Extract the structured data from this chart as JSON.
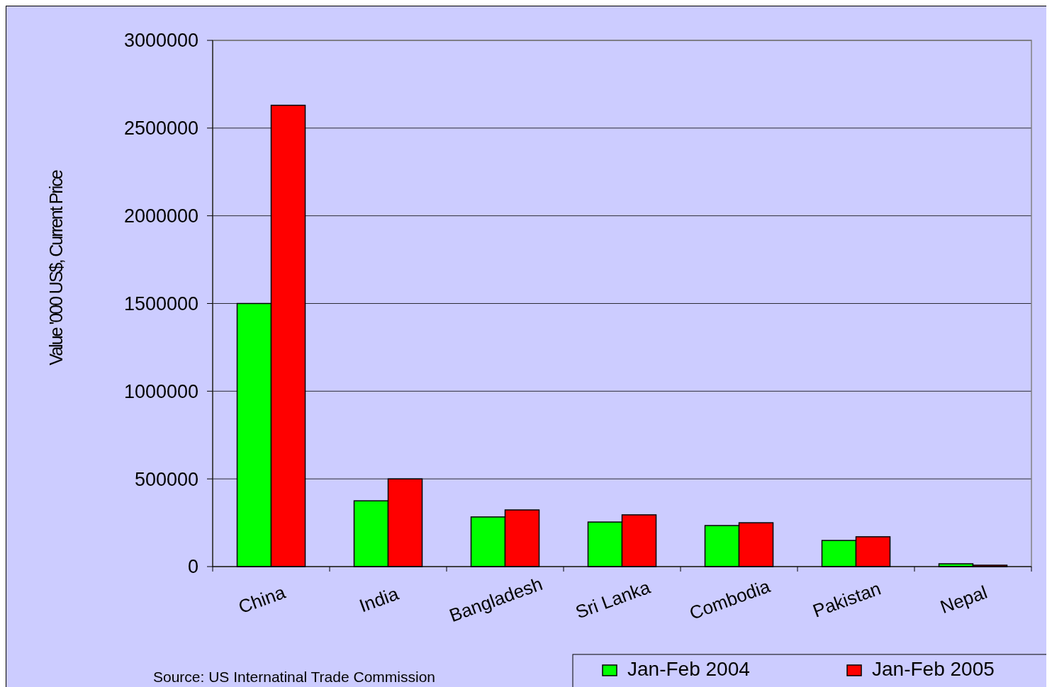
{
  "chart_data": {
    "type": "bar",
    "ylabel": "Value '000 US$, Current Price",
    "categories": [
      "China",
      "India",
      "Bangladesh",
      "Sri Lanka",
      "Combodia",
      "Pakistan",
      "Nepal"
    ],
    "series": [
      {
        "name": "Jan-Feb 2004",
        "color": "#00ff00",
        "values": [
          1500000,
          375000,
          283000,
          254000,
          234000,
          149000,
          16000
        ]
      },
      {
        "name": "Jan-Feb 2005",
        "color": "#ff0000",
        "values": [
          2630000,
          500000,
          323000,
          295000,
          250000,
          170000,
          8000
        ]
      }
    ],
    "ylim": [
      0,
      3000000
    ],
    "yticks": [
      0,
      500000,
      1000000,
      1500000,
      2000000,
      2500000,
      3000000
    ],
    "grid": "y",
    "legend": "bottom right",
    "annotations": [
      "Source: US Internatinal Trade Commission"
    ]
  }
}
